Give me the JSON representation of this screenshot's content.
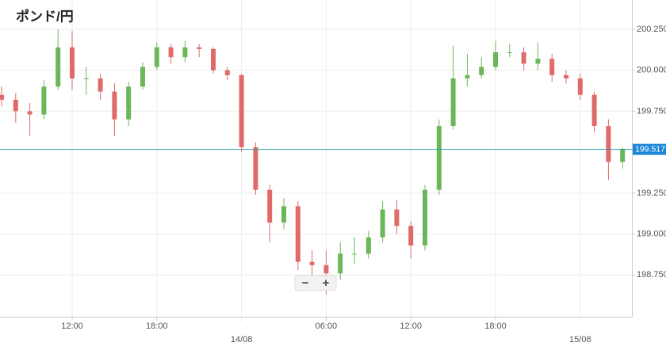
{
  "chart_data": {
    "type": "candlestick",
    "title": "ポンド/円",
    "categories": [
      null,
      null,
      null,
      null,
      null,
      "12:00",
      null,
      null,
      null,
      null,
      null,
      "18:00",
      null,
      null,
      null,
      null,
      null,
      "14/08",
      null,
      null,
      null,
      null,
      null,
      "06:00",
      null,
      null,
      null,
      null,
      null,
      "12:00",
      null,
      null,
      null,
      null,
      null,
      "18:00",
      null,
      null,
      null,
      null,
      null,
      "15/08",
      null,
      null,
      null
    ],
    "open": [
      199.85,
      199.82,
      199.75,
      199.73,
      199.9,
      200.14,
      199.95,
      199.95,
      199.87,
      199.7,
      199.9,
      200.02,
      200.14,
      200.08,
      200.14,
      200.13,
      200.0,
      199.97,
      199.53,
      199.27,
      199.07,
      199.17,
      198.83,
      198.81,
      198.76,
      198.88,
      198.88,
      198.98,
      199.15,
      199.05,
      198.93,
      199.27,
      199.66,
      199.95,
      199.97,
      200.02,
      200.11,
      200.11,
      200.04,
      200.07,
      199.97,
      199.95,
      199.85,
      199.66,
      199.44
    ],
    "high": [
      199.9,
      199.86,
      199.8,
      199.94,
      200.25,
      200.24,
      200.02,
      199.98,
      199.92,
      199.93,
      200.05,
      200.17,
      200.16,
      200.18,
      200.16,
      200.14,
      200.02,
      199.98,
      199.56,
      199.3,
      199.22,
      199.2,
      198.9,
      198.9,
      198.95,
      198.98,
      199.02,
      199.2,
      199.21,
      199.08,
      199.3,
      199.7,
      200.15,
      200.1,
      200.08,
      200.18,
      200.16,
      200.14,
      200.17,
      200.1,
      200.0,
      199.98,
      199.87,
      199.7,
      199.53
    ],
    "low": [
      199.78,
      199.68,
      199.6,
      199.7,
      199.88,
      199.88,
      199.85,
      199.82,
      199.6,
      199.66,
      199.88,
      200.0,
      200.04,
      200.05,
      200.08,
      199.98,
      199.94,
      199.5,
      199.24,
      198.95,
      199.03,
      198.78,
      198.72,
      198.63,
      198.72,
      198.82,
      198.85,
      198.95,
      199.0,
      198.85,
      198.9,
      199.24,
      199.64,
      199.9,
      199.95,
      200.0,
      200.08,
      200.0,
      200.0,
      199.93,
      199.92,
      199.82,
      199.62,
      199.33,
      199.4
    ],
    "close": [
      199.82,
      199.75,
      199.73,
      199.9,
      200.14,
      199.95,
      199.95,
      199.87,
      199.7,
      199.9,
      200.02,
      200.14,
      200.08,
      200.14,
      200.13,
      200.0,
      199.97,
      199.53,
      199.27,
      199.07,
      199.17,
      198.83,
      198.81,
      198.76,
      198.88,
      198.88,
      198.98,
      199.15,
      199.05,
      198.93,
      199.27,
      199.66,
      199.95,
      199.97,
      200.02,
      200.11,
      200.11,
      200.04,
      200.07,
      199.97,
      199.95,
      199.85,
      199.66,
      199.44,
      199.52
    ],
    "up_color": "#6cb65a",
    "down_color": "#e06a6a",
    "current_price": 199.517,
    "current_price_color": "#2a9fa8",
    "ylim": [
      198.495,
      200.429
    ],
    "yticks": [
      {
        "value": 198.75,
        "label": "198.750"
      },
      {
        "value": 199,
        "label": "199.000"
      },
      {
        "value": 199.25,
        "label": "199.250"
      },
      {
        "value": 199.75,
        "label": "199.750"
      },
      {
        "value": 200,
        "label": "200.000"
      },
      {
        "value": 200.25,
        "label": "200.250"
      }
    ],
    "grid": true,
    "controls": [
      "−",
      "+"
    ]
  }
}
